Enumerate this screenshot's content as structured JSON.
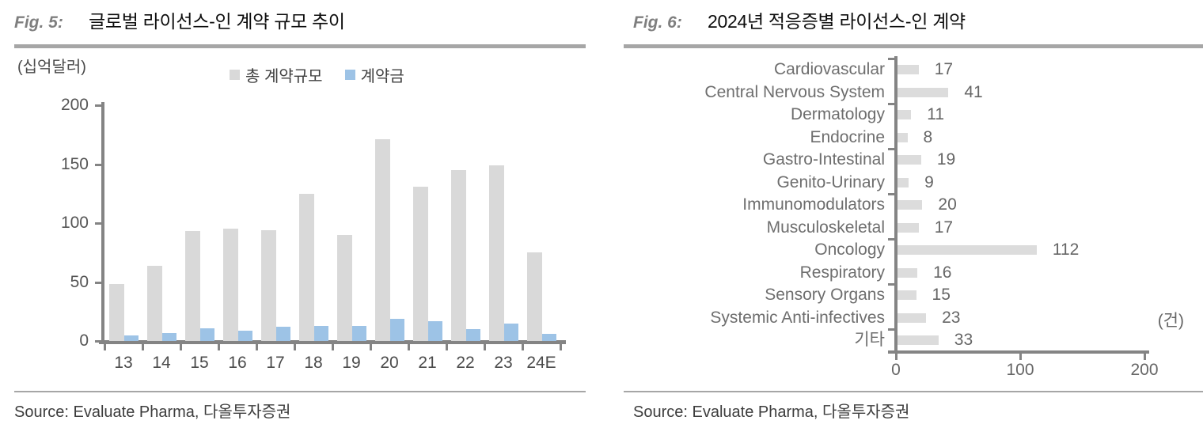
{
  "fig5": {
    "fig_label": "Fig. 5:",
    "title": "글로벌 라이선스-인 계약 규모 추이",
    "unit_label": "(십억달러)",
    "source": "Source: Evaluate Pharma, 다올투자증권"
  },
  "fig6": {
    "fig_label": "Fig. 6:",
    "title": "2024년 적응증별 라이선스-인 계약",
    "unit_label": "(건)",
    "source": "Source: Evaluate Pharma, 다올투자증권"
  },
  "chart_data": [
    {
      "type": "bar",
      "title": "글로벌 라이선스-인 계약 규모 추이",
      "unit": "십억달러",
      "categories": [
        "13",
        "14",
        "15",
        "16",
        "17",
        "18",
        "19",
        "20",
        "21",
        "22",
        "23",
        "24E"
      ],
      "series": [
        {
          "name": "총 계약규모",
          "color": "#d9d9d9",
          "values": [
            48,
            64,
            93,
            95,
            94,
            125,
            90,
            171,
            131,
            145,
            149,
            75
          ]
        },
        {
          "name": "계약금",
          "color": "#9dc3e6",
          "values": [
            5,
            7,
            11,
            9,
            12,
            13,
            13,
            19,
            17,
            10,
            15,
            6
          ]
        }
      ],
      "ylim": [
        0,
        200
      ],
      "yticks": [
        0,
        50,
        100,
        150,
        200
      ],
      "grid": false,
      "legend_position": "top"
    },
    {
      "type": "bar",
      "orientation": "horizontal",
      "title": "2024년 적응증별 라이선스-인 계약",
      "unit": "건",
      "categories": [
        "Cardiovascular",
        "Central Nervous System",
        "Dermatology",
        "Endocrine",
        "Gastro-Intestinal",
        "Genito-Urinary",
        "Immunomodulators",
        "Musculoskeletal",
        "Oncology",
        "Respiratory",
        "Sensory Organs",
        "Systemic Anti-infectives",
        "기타"
      ],
      "values": [
        17,
        41,
        11,
        8,
        19,
        9,
        20,
        17,
        112,
        16,
        15,
        23,
        33
      ],
      "bar_color": "#dcdcdc",
      "xlim": [
        0,
        200
      ],
      "xticks": [
        0,
        100,
        200
      ],
      "grid": false,
      "data_labels": true
    }
  ]
}
